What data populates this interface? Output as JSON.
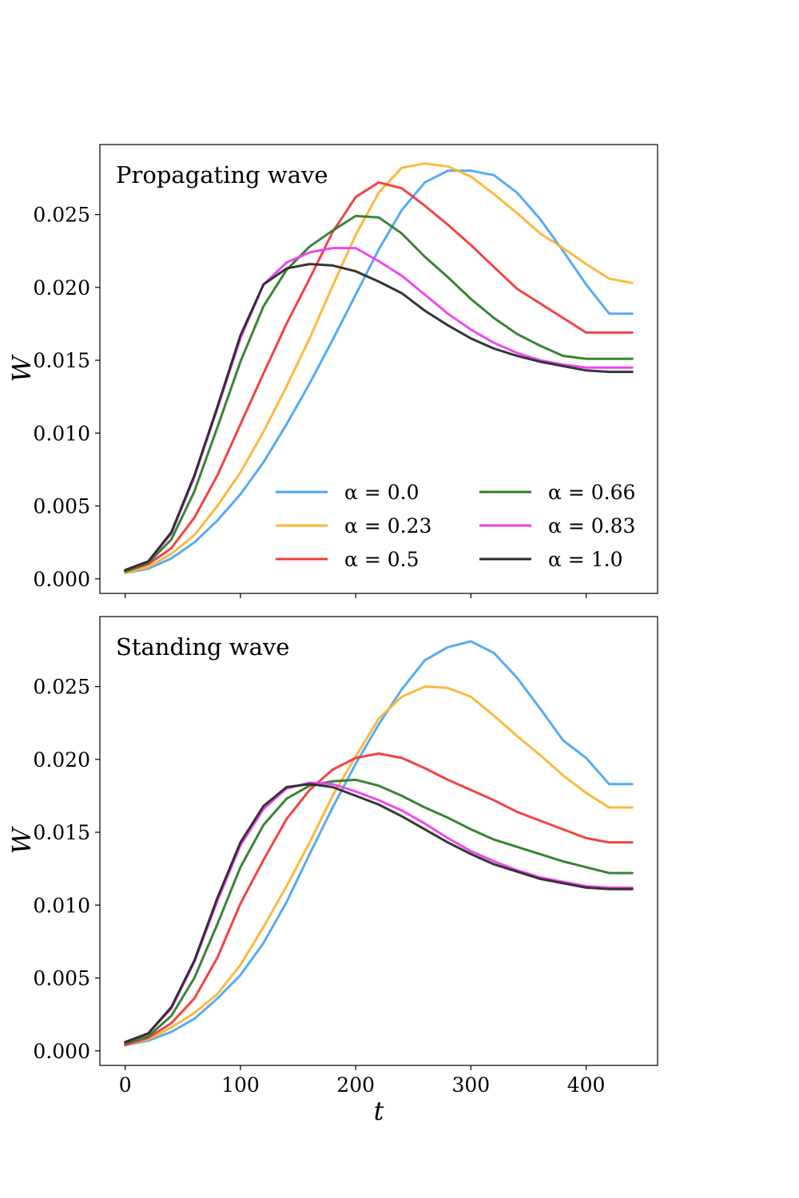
{
  "chart_data": [
    {
      "type": "line",
      "title": "Propagating wave",
      "xlabel": "t",
      "ylabel": "W",
      "xlim": [
        -22,
        462
      ],
      "ylim": [
        -0.001,
        0.0298
      ],
      "xticks": [
        0,
        100,
        200,
        300,
        400
      ],
      "xtick_labels": [
        "0",
        "100",
        "200",
        "300",
        "400"
      ],
      "yticks": [
        0.0,
        0.005,
        0.01,
        0.015,
        0.02,
        0.025
      ],
      "ytick_labels": [
        "0.000",
        "0.005",
        "0.010",
        "0.015",
        "0.020",
        "0.025"
      ],
      "legend_position": "lower-right",
      "x": [
        0,
        20,
        40,
        60,
        80,
        100,
        120,
        140,
        160,
        180,
        200,
        220,
        240,
        260,
        280,
        300,
        320,
        340,
        360,
        380,
        400,
        420,
        440
      ],
      "series": [
        {
          "name": "α = 0.0",
          "legend_label": "α = 0.0",
          "color": "#4ca6f3",
          "values": [
            0.0004,
            0.0007,
            0.0014,
            0.0025,
            0.004,
            0.0058,
            0.008,
            0.0106,
            0.0134,
            0.0164,
            0.0195,
            0.0226,
            0.0253,
            0.0272,
            0.028,
            0.028,
            0.0277,
            0.0265,
            0.0247,
            0.0225,
            0.0202,
            0.0182,
            0.0182
          ]
        },
        {
          "name": "α = 0.23",
          "legend_label": "α = 0.23",
          "color": "#fbb534",
          "values": [
            0.0004,
            0.0008,
            0.0017,
            0.003,
            0.005,
            0.0073,
            0.0101,
            0.0132,
            0.0165,
            0.0201,
            0.0236,
            0.0265,
            0.0282,
            0.0285,
            0.0283,
            0.0276,
            0.0264,
            0.0251,
            0.0237,
            0.0227,
            0.0216,
            0.0206,
            0.0203
          ]
        },
        {
          "name": "α = 0.5",
          "legend_label": "α = 0.5",
          "color": "#f23838",
          "values": [
            0.0005,
            0.001,
            0.0021,
            0.0042,
            0.0071,
            0.0106,
            0.0141,
            0.0175,
            0.0206,
            0.0238,
            0.0262,
            0.0272,
            0.0268,
            0.0256,
            0.0243,
            0.0229,
            0.0214,
            0.0199,
            0.0189,
            0.0179,
            0.0169,
            0.0169,
            0.0169
          ]
        },
        {
          "name": "α = 0.66",
          "legend_label": "α = 0.66",
          "color": "#2e7d2b",
          "values": [
            0.0005,
            0.0011,
            0.0027,
            0.006,
            0.0104,
            0.0149,
            0.0187,
            0.0212,
            0.0228,
            0.0239,
            0.0249,
            0.0248,
            0.0237,
            0.0221,
            0.0207,
            0.0192,
            0.0179,
            0.0168,
            0.016,
            0.0153,
            0.0151,
            0.0151,
            0.0151
          ]
        },
        {
          "name": "α = 0.83",
          "legend_label": "α = 0.83",
          "color": "#ec3ef0",
          "values": [
            0.0006,
            0.0012,
            0.0031,
            0.007,
            0.0117,
            0.0165,
            0.0202,
            0.0217,
            0.0224,
            0.0227,
            0.0227,
            0.0218,
            0.0208,
            0.0195,
            0.0182,
            0.0171,
            0.0162,
            0.0155,
            0.015,
            0.0147,
            0.0145,
            0.0145,
            0.0145
          ]
        },
        {
          "name": "α = 1.0",
          "legend_label": "α = 1.0",
          "color": "#2b2b2b",
          "values": [
            0.0006,
            0.0012,
            0.0032,
            0.0071,
            0.0118,
            0.0167,
            0.0202,
            0.0213,
            0.0216,
            0.0215,
            0.0211,
            0.0204,
            0.0196,
            0.0184,
            0.0174,
            0.0165,
            0.0158,
            0.0153,
            0.0149,
            0.0146,
            0.0143,
            0.0142,
            0.0142
          ]
        }
      ]
    },
    {
      "type": "line",
      "title": "Standing wave",
      "xlabel": "t",
      "ylabel": "W",
      "xlim": [
        -22,
        462
      ],
      "ylim": [
        -0.001,
        0.0298
      ],
      "xticks": [
        0,
        100,
        200,
        300,
        400
      ],
      "xtick_labels": [
        "0",
        "100",
        "200",
        "300",
        "400"
      ],
      "yticks": [
        0.0,
        0.005,
        0.01,
        0.015,
        0.02,
        0.025
      ],
      "ytick_labels": [
        "0.000",
        "0.005",
        "0.010",
        "0.015",
        "0.020",
        "0.025"
      ],
      "x": [
        0,
        20,
        40,
        60,
        80,
        100,
        120,
        140,
        160,
        180,
        200,
        220,
        240,
        260,
        280,
        300,
        320,
        340,
        360,
        380,
        400,
        420,
        440
      ],
      "series": [
        {
          "name": "α = 0.0",
          "color": "#4ca6f3",
          "values": [
            0.0004,
            0.0007,
            0.0013,
            0.0022,
            0.0036,
            0.0052,
            0.0074,
            0.0102,
            0.0135,
            0.0167,
            0.0197,
            0.0224,
            0.0248,
            0.0268,
            0.0277,
            0.0281,
            0.0273,
            0.0256,
            0.0235,
            0.0213,
            0.0201,
            0.0183,
            0.0183
          ]
        },
        {
          "name": "α = 0.23",
          "color": "#fbb534",
          "values": [
            0.0004,
            0.0008,
            0.0016,
            0.0026,
            0.0039,
            0.0059,
            0.0085,
            0.0113,
            0.0143,
            0.0175,
            0.0202,
            0.0228,
            0.0243,
            0.025,
            0.0249,
            0.0243,
            0.023,
            0.0216,
            0.0203,
            0.0189,
            0.0177,
            0.0167,
            0.0167
          ]
        },
        {
          "name": "α = 0.5",
          "color": "#f23838",
          "values": [
            0.0004,
            0.0009,
            0.0019,
            0.0036,
            0.0064,
            0.0101,
            0.0131,
            0.0159,
            0.0179,
            0.0193,
            0.0201,
            0.0204,
            0.0201,
            0.0194,
            0.0186,
            0.0179,
            0.0172,
            0.0164,
            0.0158,
            0.0152,
            0.0146,
            0.0143,
            0.0143
          ]
        },
        {
          "name": "α = 0.66",
          "color": "#2e7d2b",
          "values": [
            0.0005,
            0.001,
            0.0024,
            0.005,
            0.0087,
            0.0126,
            0.0155,
            0.0173,
            0.0182,
            0.0185,
            0.0186,
            0.0182,
            0.0175,
            0.0167,
            0.016,
            0.0152,
            0.0145,
            0.014,
            0.0135,
            0.013,
            0.0126,
            0.0122,
            0.0122
          ]
        },
        {
          "name": "α = 0.83",
          "color": "#ec3ef0",
          "values": [
            0.0006,
            0.0012,
            0.0029,
            0.0061,
            0.0103,
            0.0141,
            0.0166,
            0.018,
            0.0184,
            0.0183,
            0.0178,
            0.0172,
            0.0165,
            0.0156,
            0.0146,
            0.0137,
            0.013,
            0.0124,
            0.0119,
            0.0116,
            0.0113,
            0.0112,
            0.0112
          ]
        },
        {
          "name": "α = 1.0",
          "color": "#2b2b2b",
          "values": [
            0.0006,
            0.0012,
            0.003,
            0.0062,
            0.0105,
            0.0143,
            0.0168,
            0.0181,
            0.0183,
            0.0181,
            0.0175,
            0.0169,
            0.0161,
            0.0152,
            0.0143,
            0.0135,
            0.0128,
            0.0123,
            0.0118,
            0.0115,
            0.0112,
            0.0111,
            0.0111
          ]
        }
      ]
    }
  ]
}
